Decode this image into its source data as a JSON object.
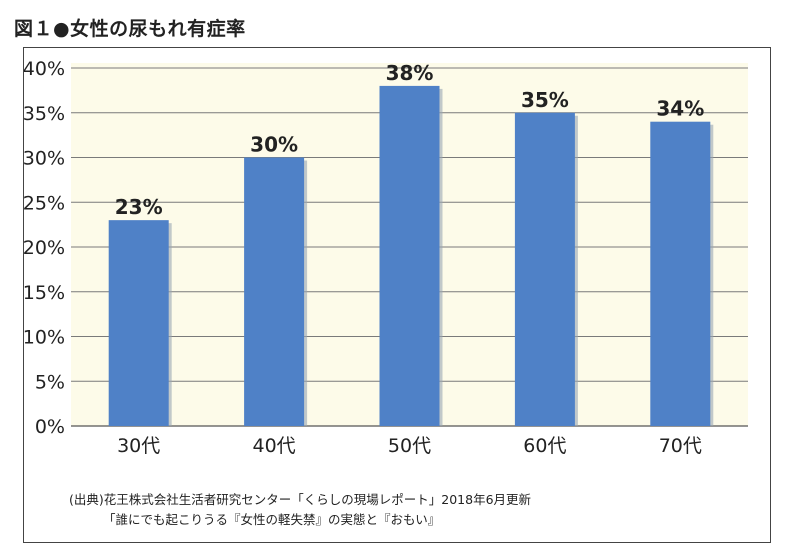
{
  "figure": {
    "title": "図１●女性の尿もれ有症率"
  },
  "chart_data": {
    "type": "bar",
    "categories": [
      "30代",
      "40代",
      "50代",
      "60代",
      "70代"
    ],
    "values": [
      23,
      30,
      38,
      35,
      34
    ],
    "data_labels": [
      "23%",
      "30%",
      "38%",
      "35%",
      "34%"
    ],
    "y_ticks": [
      "0%",
      "5%",
      "10%",
      "15%",
      "20%",
      "25%",
      "30%",
      "35%",
      "40%"
    ],
    "ylim": [
      0,
      40
    ],
    "grid": true,
    "bar_color": "#4f81c7",
    "background_color": "#fdfbe9"
  },
  "source": {
    "line1": "(出典)花王株式会社生活者研究センター「くらしの現場レポート」2018年6月更新",
    "line2": "「誰にでも起こりうる『女性の軽失禁』の実態と『おもい』"
  }
}
